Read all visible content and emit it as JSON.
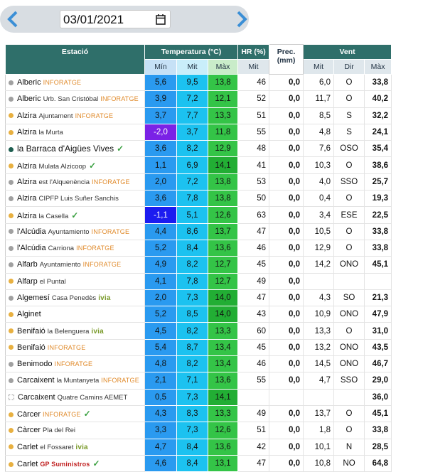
{
  "date_picker": {
    "value": "03/01/2021"
  },
  "table": {
    "group_headers": [
      "Estació",
      "Temperatura (°C)",
      "HR (%)",
      "Prec. (mm)",
      "Vent"
    ],
    "sub_headers": [
      "Mín",
      "Mit",
      "Màx",
      "Mit",
      "Mit",
      "Dir",
      "Màx"
    ],
    "columns": [
      "min",
      "mit",
      "max",
      "hr",
      "prec",
      "wind_mit",
      "wind_dir",
      "wind_max"
    ],
    "rows": [
      {
        "dot": "#a0a0a0",
        "name": "Alberic",
        "place": null,
        "badge": "INFORATGE",
        "check": false,
        "values": [
          "5,6",
          "9,5",
          "13,8",
          "46",
          "0,0",
          "6,0",
          "O",
          "33,8"
        ]
      },
      {
        "dot": "#a0a0a0",
        "name": "Alberic",
        "place": "Urb. San Cristóbal",
        "badge": "INFORATGE",
        "check": false,
        "values": [
          "3,9",
          "7,2",
          "12,1",
          "52",
          "0,0",
          "11,7",
          "O",
          "40,2"
        ]
      },
      {
        "dot": "#e8b040",
        "name": "Alzira",
        "place": "Ajuntament",
        "badge": "INFORATGE",
        "check": false,
        "values": [
          "3,7",
          "7,7",
          "13,3",
          "51",
          "0,0",
          "8,5",
          "S",
          "32,2"
        ]
      },
      {
        "dot": "#e8b040",
        "name": "Alzira",
        "place": "la Murta",
        "badge": null,
        "check": false,
        "values": [
          "-2,0",
          "3,7",
          "11,8",
          "55",
          "0,0",
          "4,8",
          "S",
          "24,1"
        ]
      },
      {
        "dot": "#1e5e50",
        "name": "la Barraca d'Aigües Vives",
        "place": null,
        "badge": null,
        "check": true,
        "values": [
          "3,6",
          "8,2",
          "12,9",
          "48",
          "0,0",
          "7,6",
          "OSO",
          "35,4"
        ]
      },
      {
        "dot": "#e8b040",
        "name": "Alzira",
        "place": "Mulata Alzicoop",
        "badge": null,
        "check": true,
        "values": [
          "1,1",
          "6,9",
          "14,1",
          "41",
          "0,0",
          "10,3",
          "O",
          "38,6"
        ]
      },
      {
        "dot": "#a0a0a0",
        "name": "Alzira",
        "place": "est l'Alquenència",
        "badge": "INFORATGE",
        "check": false,
        "values": [
          "2,0",
          "7,2",
          "13,8",
          "53",
          "0,0",
          "4,0",
          "SSO",
          "25,7"
        ]
      },
      {
        "dot": "#a0a0a0",
        "name": "Alzira",
        "place": "CIPFP Luis Suñer Sanchis",
        "badge": null,
        "check": false,
        "values": [
          "3,6",
          "7,8",
          "13,8",
          "50",
          "0,0",
          "0,4",
          "O",
          "19,3"
        ]
      },
      {
        "dot": "#e8b040",
        "name": "Alzira",
        "place": "la Casella",
        "badge": null,
        "check": true,
        "values": [
          "-1,1",
          "5,1",
          "12,6",
          "63",
          "0,0",
          "3,4",
          "ESE",
          "22,5"
        ]
      },
      {
        "dot": "#a0a0a0",
        "name": "l'Alcúdia",
        "place": "Ayuntamiento",
        "badge": "INFORATGE",
        "check": false,
        "values": [
          "4,4",
          "8,6",
          "13,7",
          "47",
          "0,0",
          "10,5",
          "O",
          "33,8"
        ]
      },
      {
        "dot": "#a0a0a0",
        "name": "l'Alcúdia",
        "place": "Carriona",
        "badge": "INFORATGE",
        "check": false,
        "values": [
          "5,2",
          "8,4",
          "13,6",
          "46",
          "0,0",
          "12,9",
          "O",
          "33,8"
        ]
      },
      {
        "dot": "#a0a0a0",
        "name": "Alfarb",
        "place": "Ayuntamiento",
        "badge": "INFORATGE",
        "check": false,
        "values": [
          "4,9",
          "8,2",
          "12,7",
          "45",
          "0,0",
          "14,2",
          "ONO",
          "45,1"
        ]
      },
      {
        "dot": "#e8b040",
        "name": "Alfarp",
        "place": "el Puntal",
        "badge": null,
        "check": false,
        "values": [
          "4,1",
          "7,8",
          "12,7",
          "49",
          "0,0",
          null,
          null,
          null
        ]
      },
      {
        "dot": "#a0a0a0",
        "name": "Algemesí",
        "place": "Casa Penedès",
        "badge": "ivia",
        "check": false,
        "values": [
          "2,0",
          "7,3",
          "14,0",
          "47",
          "0,0",
          "4,3",
          "SO",
          "21,3"
        ]
      },
      {
        "dot": "#e8b040",
        "name": "Alginet",
        "place": null,
        "badge": null,
        "check": false,
        "values": [
          "5,2",
          "8,5",
          "14,0",
          "43",
          "0,0",
          "10,9",
          "ONO",
          "47,9"
        ]
      },
      {
        "dot": "#e8b040",
        "name": "Benifaió",
        "place": "la Belenguera",
        "badge": "ivia",
        "check": false,
        "values": [
          "4,5",
          "8,2",
          "13,3",
          "60",
          "0,0",
          "13,3",
          "O",
          "31,0"
        ]
      },
      {
        "dot": "#e8b040",
        "name": "Benifaió",
        "place": null,
        "badge": "INFORATGE",
        "check": false,
        "values": [
          "5,4",
          "8,7",
          "13,4",
          "45",
          "0,0",
          "13,2",
          "ONO",
          "43,5"
        ]
      },
      {
        "dot": "#a0a0a0",
        "name": "Benimodo",
        "place": null,
        "badge": "INFORATGE",
        "check": false,
        "values": [
          "4,8",
          "8,2",
          "13,4",
          "46",
          "0,0",
          "14,5",
          "ONO",
          "46,7"
        ]
      },
      {
        "dot": "#a0a0a0",
        "name": "Carcaixent",
        "place": "la Muntanyeta",
        "badge": "INFORATGE",
        "check": false,
        "values": [
          "2,1",
          "7,1",
          "13,6",
          "55",
          "0,0",
          "4,7",
          "SSO",
          "29,0"
        ]
      },
      {
        "dot": null,
        "name": "Carcaixent",
        "place": "Quatre Camins AEMET",
        "badge": null,
        "check": false,
        "values": [
          "0,5",
          "7,3",
          "14,1",
          null,
          null,
          null,
          null,
          "36,0"
        ]
      },
      {
        "dot": "#e8b040",
        "name": "Càrcer",
        "place": null,
        "badge": "INFORATGE",
        "check": true,
        "values": [
          "4,3",
          "8,3",
          "13,3",
          "49",
          "0,0",
          "13,7",
          "O",
          "45,1"
        ]
      },
      {
        "dot": "#e8b040",
        "name": "Càrcer",
        "place": "Pla del Rei",
        "badge": null,
        "check": false,
        "values": [
          "3,3",
          "7,3",
          "12,6",
          "51",
          "0,0",
          "1,8",
          "O",
          "33,8"
        ]
      },
      {
        "dot": "#e8b040",
        "name": "Carlet",
        "place": "el Fossaret",
        "badge": "ivia",
        "check": false,
        "values": [
          "4,7",
          "8,4",
          "13,6",
          "42",
          "0,0",
          "10,1",
          "N",
          "28,5"
        ]
      },
      {
        "dot": "#e8b040",
        "name": "Carlet",
        "place": null,
        "badge": "GP Suministros",
        "check": true,
        "values": [
          "4,6",
          "8,4",
          "13,1",
          "47",
          "0,0",
          "10,8",
          "NO",
          "64,8"
        ]
      }
    ]
  }
}
